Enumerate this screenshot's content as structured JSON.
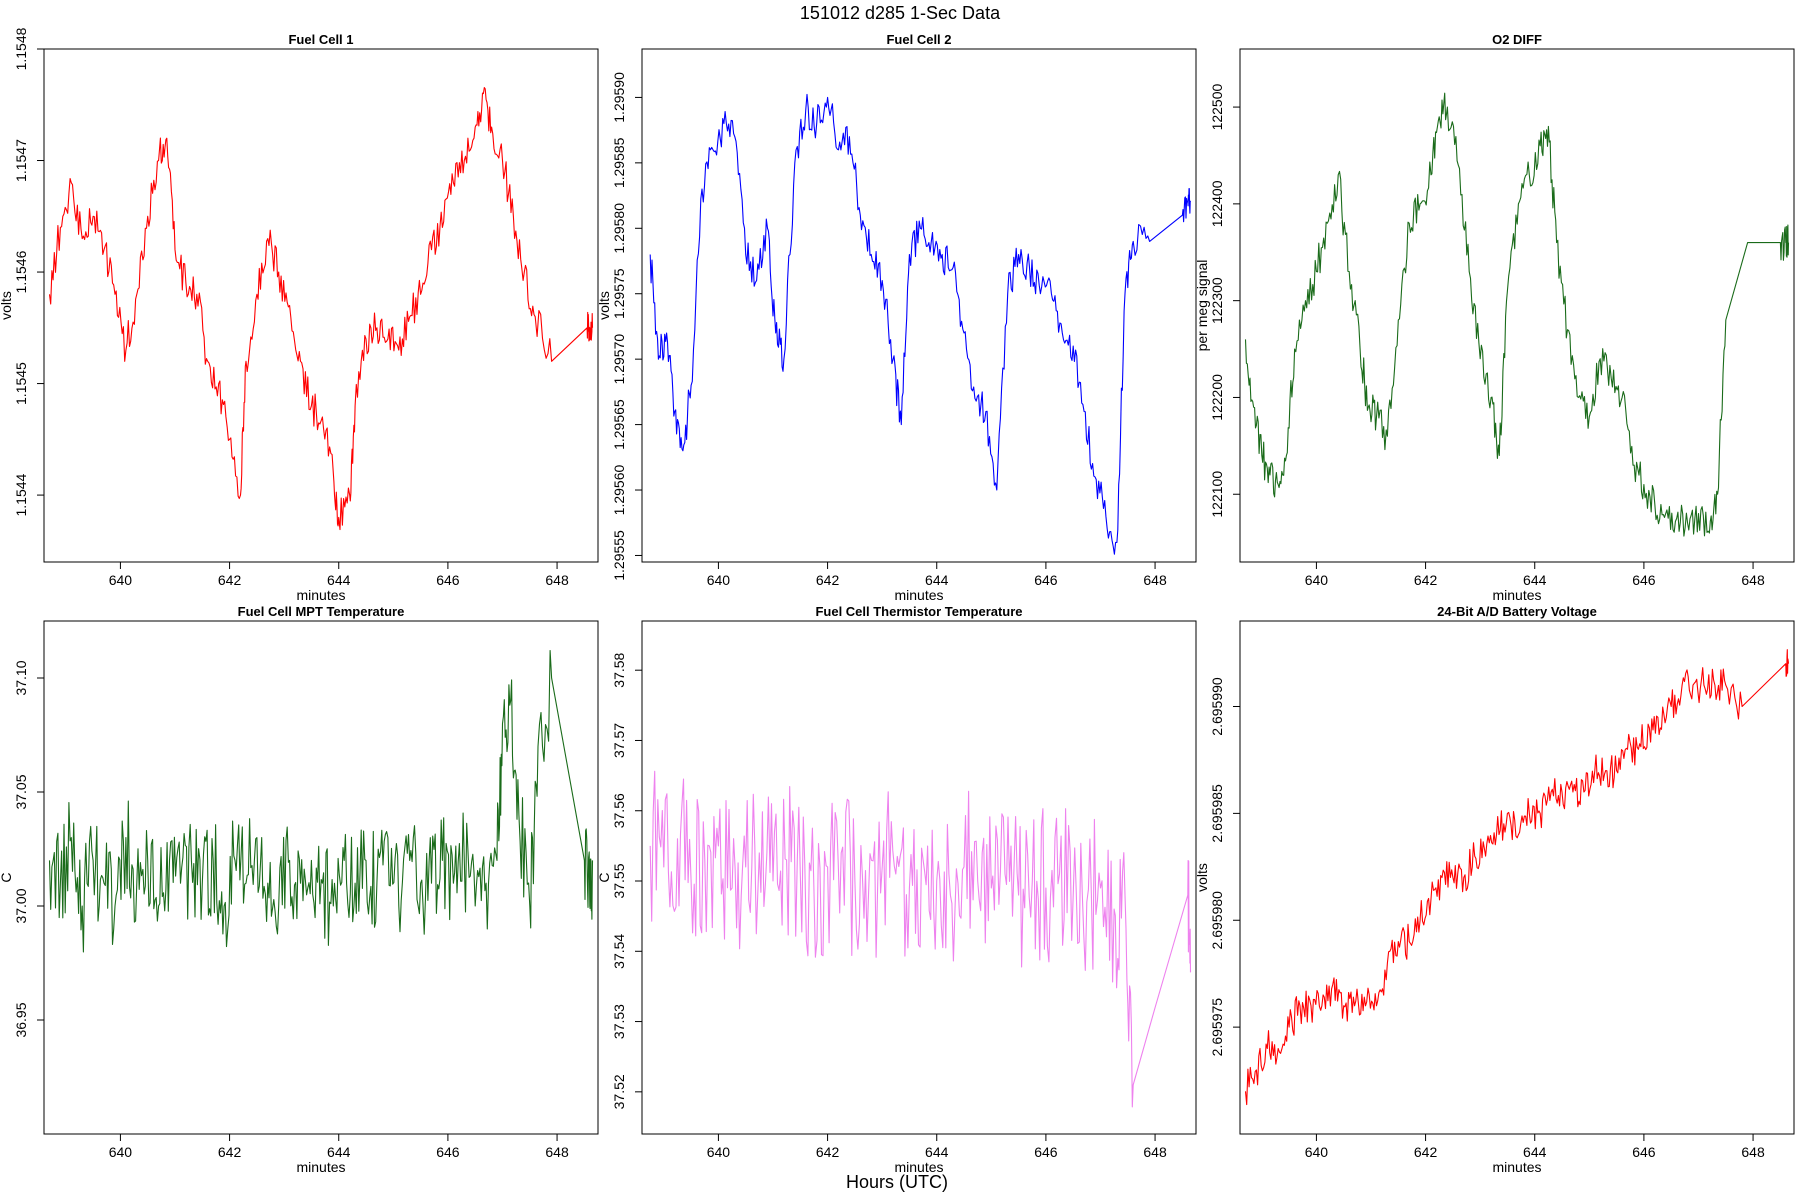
{
  "figure": {
    "title": "151012   d285   1-Sec Data",
    "bottom_label": "Hours (UTC)"
  },
  "chart_data": [
    {
      "type": "line",
      "title": "Fuel Cell 1",
      "xlabel": "minutes",
      "ylabel": "volts",
      "color": "#ff0000",
      "xlim": [
        638.6,
        648.75
      ],
      "ylim": [
        1.15434,
        1.1548
      ],
      "xticks": [
        640,
        642,
        644,
        646,
        648
      ],
      "yticks": [
        1.1544,
        1.1545,
        1.1546,
        1.1547,
        1.1548
      ],
      "ytick_decimals": 4,
      "series": [
        {
          "x": [
            638.7,
            638.9,
            639.1,
            639.3,
            639.5,
            639.7,
            639.9,
            640.1,
            640.3,
            640.5,
            640.7,
            640.85,
            641.0,
            641.2,
            641.4,
            641.6,
            641.8,
            642.0,
            642.2,
            642.3,
            642.5,
            642.7,
            642.9,
            643.1,
            643.3,
            643.5,
            643.7,
            643.9,
            644.0,
            644.2,
            644.3,
            644.5,
            644.7,
            644.9,
            645.1,
            645.3,
            645.5,
            645.7,
            645.9,
            646.1,
            646.3,
            646.5,
            646.65,
            646.8,
            647.0,
            647.2,
            647.4,
            647.6,
            647.9,
            648.55,
            648.6,
            648.65
          ],
          "values": [
            1.15458,
            1.15464,
            1.15468,
            1.15463,
            1.15465,
            1.15462,
            1.15458,
            1.15453,
            1.15458,
            1.15465,
            1.1547,
            1.15472,
            1.15462,
            1.15459,
            1.15458,
            1.15452,
            1.1545,
            1.15445,
            1.1544,
            1.15452,
            1.15458,
            1.15463,
            1.1546,
            1.15457,
            1.15452,
            1.15448,
            1.15447,
            1.15442,
            1.15438,
            1.1544,
            1.15448,
            1.15454,
            1.15455,
            1.15454,
            1.15453,
            1.15456,
            1.15458,
            1.15462,
            1.15464,
            1.15468,
            1.1547,
            1.15473,
            1.15476,
            1.15473,
            1.1547,
            1.15465,
            1.1546,
            1.15456,
            1.15452,
            1.15455,
            1.15455,
            1.15455
          ]
        }
      ]
    },
    {
      "type": "line",
      "title": "Fuel Cell 2",
      "xlabel": "minutes",
      "ylabel": "volts",
      "color": "#0000ff",
      "xlim": [
        638.6,
        648.75
      ],
      "ylim": [
        1.295545,
        1.295937
      ],
      "xticks": [
        640,
        642,
        644,
        646,
        648
      ],
      "yticks": [
        1.29555,
        1.2956,
        1.29565,
        1.2957,
        1.29575,
        1.2958,
        1.29585,
        1.2959
      ],
      "ytick_decimals": 5,
      "series": [
        {
          "x": [
            638.75,
            638.9,
            639.05,
            639.2,
            639.35,
            639.5,
            639.7,
            639.9,
            640.1,
            640.3,
            640.5,
            640.7,
            640.9,
            641.05,
            641.2,
            641.4,
            641.6,
            641.8,
            642.0,
            642.2,
            642.4,
            642.6,
            642.8,
            643.0,
            643.2,
            643.35,
            643.5,
            643.7,
            643.9,
            644.1,
            644.3,
            644.5,
            644.7,
            644.9,
            645.1,
            645.3,
            645.5,
            645.7,
            645.9,
            646.1,
            646.3,
            646.5,
            646.7,
            646.9,
            647.1,
            647.3,
            647.45,
            647.6,
            647.9,
            648.5,
            648.6,
            648.65
          ],
          "values": [
            1.29578,
            1.2957,
            1.29572,
            1.29566,
            1.29563,
            1.29568,
            1.29583,
            1.29586,
            1.29588,
            1.29587,
            1.29578,
            1.29576,
            1.2958,
            1.29572,
            1.2957,
            1.29585,
            1.29589,
            1.29588,
            1.2959,
            1.29586,
            1.29587,
            1.29581,
            1.29578,
            1.29576,
            1.2957,
            1.29565,
            1.29578,
            1.2958,
            1.29579,
            1.29578,
            1.29577,
            1.29572,
            1.29567,
            1.29566,
            1.2956,
            1.29575,
            1.29578,
            1.29577,
            1.29575,
            1.29575,
            1.29572,
            1.29571,
            1.29566,
            1.29561,
            1.29558,
            1.29556,
            1.29575,
            1.29579,
            1.29579,
            1.29581,
            1.29582,
            1.29582
          ]
        }
      ]
    },
    {
      "type": "line",
      "title": "O2 DIFF",
      "xlabel": "minutes",
      "ylabel": "per meg signal",
      "color": "#1a6b1a",
      "xlim": [
        638.6,
        648.75
      ],
      "ylim": [
        122030,
        122560
      ],
      "xticks": [
        640,
        642,
        644,
        646,
        648
      ],
      "yticks": [
        122100,
        122200,
        122300,
        122400,
        122500
      ],
      "ytick_decimals": 0,
      "series": [
        {
          "x": [
            638.7,
            638.85,
            639.0,
            639.15,
            639.3,
            639.45,
            639.6,
            639.8,
            640.0,
            640.2,
            640.4,
            640.6,
            640.8,
            640.95,
            641.1,
            641.3,
            641.5,
            641.7,
            641.9,
            642.1,
            642.25,
            642.4,
            642.6,
            642.8,
            643.0,
            643.2,
            643.35,
            643.5,
            643.7,
            643.9,
            644.1,
            644.25,
            644.4,
            644.6,
            644.8,
            645.0,
            645.2,
            645.4,
            645.6,
            645.8,
            646.0,
            646.2,
            646.4,
            646.6,
            646.8,
            647.0,
            647.2,
            647.35,
            647.5,
            647.9,
            648.5,
            648.6,
            648.65
          ],
          "values": [
            122260,
            122190,
            122140,
            122120,
            122110,
            122140,
            122250,
            122300,
            122330,
            122380,
            122430,
            122330,
            122250,
            122190,
            122180,
            122160,
            122280,
            122380,
            122400,
            122430,
            122490,
            122500,
            122440,
            122330,
            122240,
            122200,
            122140,
            122310,
            122400,
            122430,
            122460,
            122480,
            122360,
            122270,
            122200,
            122180,
            122240,
            122220,
            122200,
            122130,
            122110,
            122090,
            122080,
            122075,
            122070,
            122080,
            122060,
            122100,
            122280,
            122360,
            122360,
            122360,
            122360
          ]
        }
      ]
    },
    {
      "type": "line",
      "title": "Fuel Cell MPT Temperature",
      "xlabel": "minutes",
      "ylabel": "C",
      "color": "#1a6b1a",
      "xlim": [
        638.6,
        648.75
      ],
      "ylim": [
        36.9,
        37.125
      ],
      "xticks": [
        640,
        642,
        644,
        646,
        648
      ],
      "yticks": [
        36.95,
        37.0,
        37.05,
        37.1
      ],
      "ytick_decimals": 2,
      "series": [
        {
          "x": [
            638.7,
            638.9,
            639.1,
            639.3,
            639.5,
            639.7,
            639.9,
            640.1,
            640.3,
            640.5,
            640.7,
            640.9,
            641.1,
            641.3,
            641.5,
            641.7,
            641.9,
            642.1,
            642.3,
            642.5,
            642.7,
            642.9,
            643.1,
            643.3,
            643.5,
            643.7,
            643.9,
            644.1,
            644.3,
            644.5,
            644.7,
            644.9,
            645.1,
            645.3,
            645.5,
            645.7,
            645.9,
            646.1,
            646.3,
            646.5,
            646.7,
            646.9,
            647.0,
            647.15,
            647.3,
            647.5,
            647.65,
            647.9,
            648.5,
            648.6,
            648.65
          ],
          "values": [
            37.02,
            37.01,
            37.03,
            37.0,
            37.02,
            37.01,
            37.0,
            37.03,
            37.01,
            37.02,
            37.0,
            37.02,
            37.01,
            37.02,
            37.01,
            37.02,
            37.0,
            37.02,
            37.01,
            37.03,
            37.01,
            37.0,
            37.02,
            37.01,
            37.02,
            37.01,
            37.0,
            37.02,
            37.01,
            37.02,
            37.01,
            37.03,
            37.0,
            37.02,
            37.01,
            37.01,
            37.02,
            37.01,
            37.02,
            37.0,
            37.01,
            37.02,
            37.08,
            37.09,
            37.04,
            37.0,
            37.07,
            37.1,
            37.02,
            37.0,
            37.02
          ]
        }
      ]
    },
    {
      "type": "line",
      "title": "Fuel Cell Thermistor Temperature",
      "xlabel": "minutes",
      "ylabel": "C",
      "color": "#ee82ee",
      "xlim": [
        638.6,
        648.75
      ],
      "ylim": [
        37.514,
        37.587
      ],
      "xticks": [
        640,
        642,
        644,
        646,
        648
      ],
      "yticks": [
        37.52,
        37.53,
        37.54,
        37.55,
        37.56,
        37.57,
        37.58
      ],
      "ytick_decimals": 2,
      "series": [
        {
          "x": [
            638.75,
            639.0,
            639.25,
            639.5,
            639.75,
            640.0,
            640.25,
            640.5,
            640.75,
            641.0,
            641.25,
            641.5,
            641.75,
            642.0,
            642.25,
            642.5,
            642.75,
            643.0,
            643.25,
            643.5,
            643.75,
            644.0,
            644.25,
            644.5,
            644.75,
            645.0,
            645.25,
            645.5,
            645.75,
            646.0,
            646.25,
            646.5,
            646.75,
            647.0,
            647.25,
            647.45,
            647.6,
            648.0,
            648.6,
            648.65
          ],
          "values": [
            37.555,
            37.552,
            37.556,
            37.55,
            37.553,
            37.555,
            37.549,
            37.552,
            37.554,
            37.55,
            37.553,
            37.551,
            37.549,
            37.552,
            37.554,
            37.55,
            37.548,
            37.552,
            37.551,
            37.549,
            37.553,
            37.55,
            37.548,
            37.552,
            37.55,
            37.549,
            37.551,
            37.548,
            37.55,
            37.549,
            37.551,
            37.548,
            37.547,
            37.549,
            37.546,
            37.548,
            37.521,
            37.532,
            37.548,
            37.537
          ]
        }
      ]
    },
    {
      "type": "line",
      "title": "24-Bit A/D Battery Voltage",
      "xlabel": "minutes",
      "ylabel": "volts",
      "color": "#ff0000",
      "xlim": [
        638.6,
        648.75
      ],
      "ylim": [
        2.69597,
        2.695994
      ],
      "xticks": [
        640,
        642,
        644,
        646,
        648
      ],
      "yticks": [
        2.695975,
        2.69598,
        2.695985,
        2.69599
      ],
      "ytick_decimals": 6,
      "series": [
        {
          "x": [
            638.7,
            638.9,
            639.1,
            639.3,
            639.5,
            639.7,
            639.9,
            640.1,
            640.3,
            640.5,
            640.7,
            640.9,
            641.1,
            641.3,
            641.5,
            641.7,
            641.9,
            642.1,
            642.3,
            642.5,
            642.7,
            642.9,
            643.1,
            643.3,
            643.5,
            643.7,
            643.9,
            644.1,
            644.3,
            644.5,
            644.7,
            644.9,
            645.1,
            645.3,
            645.5,
            645.7,
            645.9,
            646.1,
            646.3,
            646.5,
            646.7,
            646.9,
            647.1,
            647.3,
            647.5,
            647.8,
            648.6,
            648.65
          ],
          "values": [
            2.695972,
            2.695973,
            2.695974,
            2.695974,
            2.695975,
            2.695976,
            2.695976,
            2.695976,
            2.695977,
            2.695976,
            2.695976,
            2.695976,
            2.695976,
            2.695978,
            2.695979,
            2.695979,
            2.69598,
            2.695981,
            2.695982,
            2.695982,
            2.695982,
            2.695983,
            2.695983,
            2.695984,
            2.695985,
            2.695984,
            2.695985,
            2.695985,
            2.695986,
            2.695986,
            2.695986,
            2.695986,
            2.695987,
            2.695987,
            2.695987,
            2.695988,
            2.695988,
            2.695989,
            2.695989,
            2.69599,
            2.695991,
            2.695991,
            2.695991,
            2.695991,
            2.695991,
            2.69599,
            2.695992,
            2.695992
          ]
        }
      ]
    }
  ]
}
